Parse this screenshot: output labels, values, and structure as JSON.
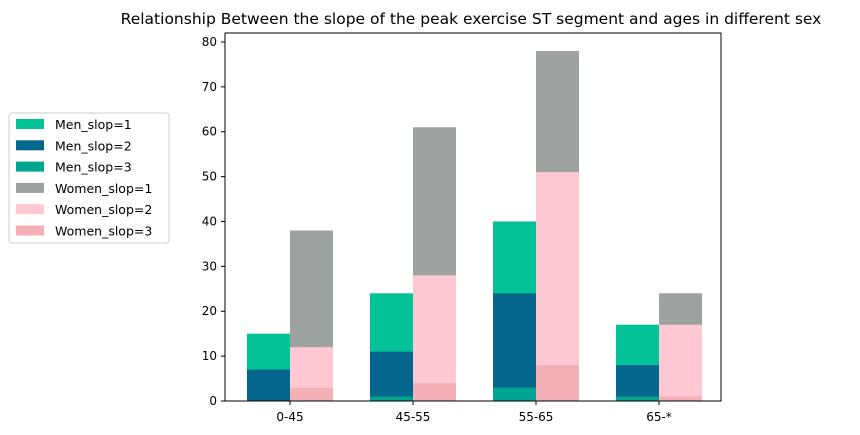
{
  "chart_data": {
    "type": "bar",
    "title": "Relationship Between the slope of the peak exercise ST segment and ages in different sex",
    "xlabel": "",
    "ylabel": "",
    "categories": [
      "0-45",
      "45-55",
      "55-65",
      "65-*"
    ],
    "ylim": [
      0,
      82
    ],
    "yticks": [
      0,
      10,
      20,
      30,
      40,
      50,
      60,
      70,
      80
    ],
    "grid": false,
    "legend_position": "left",
    "stacked": true,
    "groups": [
      "Men",
      "Women"
    ],
    "series": [
      {
        "name": "Men_slop=1",
        "group": "Men",
        "color": "#03c298",
        "values": [
          15,
          24,
          40,
          17
        ]
      },
      {
        "name": "Men_slop=2",
        "group": "Men",
        "color": "#05668d",
        "values": [
          7,
          11,
          24,
          8
        ]
      },
      {
        "name": "Men_slop=3",
        "group": "Men",
        "color": "#02a591",
        "values": [
          0,
          1,
          3,
          1
        ]
      },
      {
        "name": "Women_slop=1",
        "group": "Women",
        "color": "#9ca29e",
        "values": [
          38,
          61,
          78,
          24
        ]
      },
      {
        "name": "Women_slop=2",
        "group": "Women",
        "color": "#ffc8d3",
        "values": [
          12,
          28,
          51,
          17
        ]
      },
      {
        "name": "Women_slop=3",
        "group": "Women",
        "color": "#f5afb6",
        "values": [
          3,
          4,
          8,
          1
        ]
      }
    ]
  }
}
